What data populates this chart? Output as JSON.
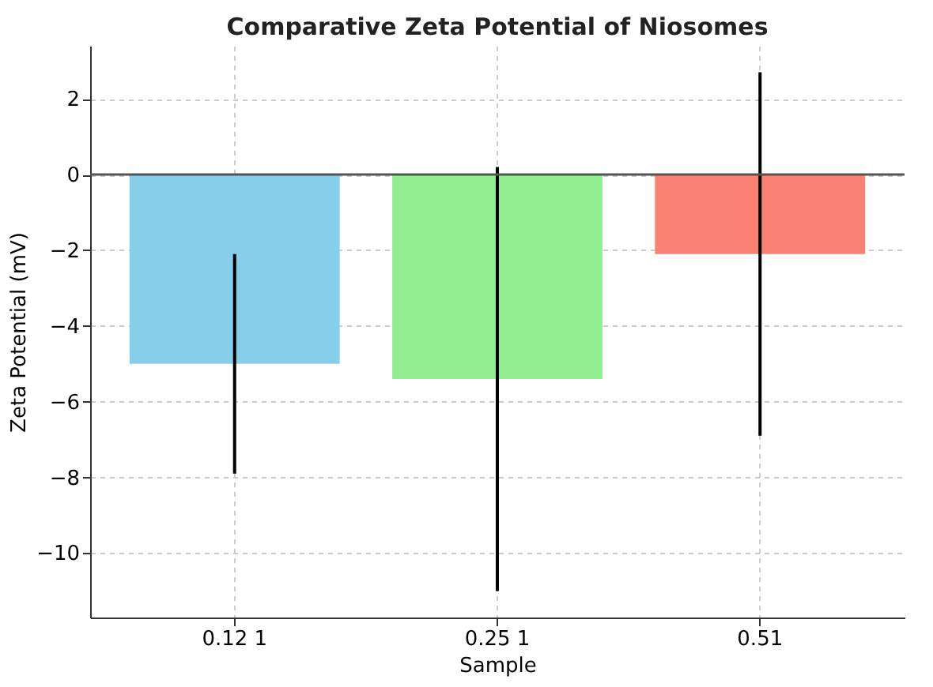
{
  "chart_data": {
    "type": "bar",
    "title": "Comparative Zeta Potential of Niosomes",
    "xlabel": "Sample",
    "ylabel": "Zeta Potential (mV)",
    "categories": [
      "0.12 1",
      "0.25 1",
      "0.51"
    ],
    "values": [
      -5.0,
      -5.4,
      -2.1
    ],
    "colors": [
      "#87ceeb",
      "#90ee90",
      "#fa8072"
    ],
    "errors": [
      2.9,
      5.6,
      4.8
    ],
    "ylim": [
      -11.7,
      3.4
    ],
    "yticks": [
      2,
      0,
      -2,
      -4,
      -6,
      -8,
      -10
    ],
    "ref_lines": [
      {
        "axis": "y",
        "value": 0,
        "color": "#555555"
      }
    ],
    "grid": true
  }
}
